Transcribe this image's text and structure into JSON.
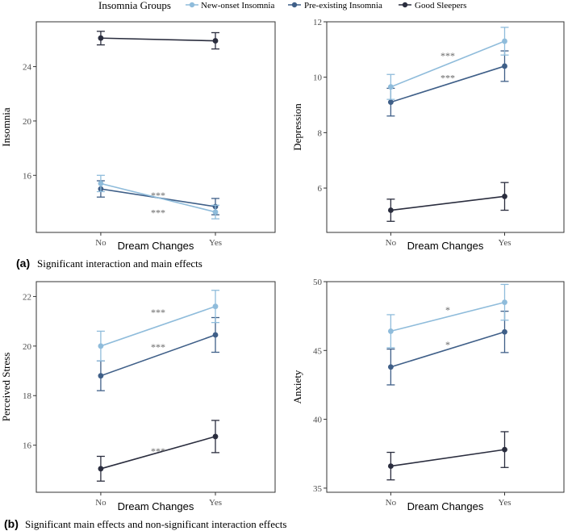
{
  "legend": {
    "title": "Insomnia Groups",
    "entries": [
      {
        "name": "New-onset Insomnia",
        "color": "#8fbcdb"
      },
      {
        "name": "Pre-existing Insomnia",
        "color": "#3f5f88"
      },
      {
        "name": "Good Sleepers",
        "color": "#2a2d3e"
      }
    ]
  },
  "captions": {
    "a_tag": "(a)",
    "a_text": "Significant interaction and main effects",
    "b_tag": "(b)",
    "b_text": "Significant main effects and non-significant interaction effects"
  },
  "chart_data": [
    {
      "type": "line",
      "ylabel": "Insomnia",
      "xlabel": "Dream Changes",
      "categories": [
        "No",
        "Yes"
      ],
      "ylim": [
        11.8,
        27.3
      ],
      "yticks": [
        16,
        20,
        24
      ],
      "series": [
        {
          "name": "New-onset Insomnia",
          "values": [
            15.4,
            13.3
          ],
          "err": [
            0.6,
            0.5
          ]
        },
        {
          "name": "Pre-existing Insomnia",
          "values": [
            15.0,
            13.7
          ],
          "err": [
            0.6,
            0.6
          ]
        },
        {
          "name": "Good Sleepers",
          "values": [
            26.1,
            25.9
          ],
          "err": [
            0.5,
            0.6
          ]
        }
      ],
      "annotations": [
        {
          "text": "***",
          "value": 14.6
        },
        {
          "text": "***",
          "value": 13.3
        }
      ]
    },
    {
      "type": "line",
      "ylabel": "Depression",
      "xlabel": "Dream Changes",
      "categories": [
        "No",
        "Yes"
      ],
      "ylim": [
        4.4,
        12.0
      ],
      "yticks": [
        6,
        8,
        10,
        12
      ],
      "series": [
        {
          "name": "New-onset Insomnia",
          "values": [
            9.65,
            11.3
          ],
          "err": [
            0.45,
            0.5
          ]
        },
        {
          "name": "Pre-existing Insomnia",
          "values": [
            9.1,
            10.4
          ],
          "err": [
            0.5,
            0.55
          ]
        },
        {
          "name": "Good Sleepers",
          "values": [
            5.2,
            5.7
          ],
          "err": [
            0.4,
            0.5
          ]
        }
      ],
      "annotations": [
        {
          "text": "***",
          "value": 10.8
        },
        {
          "text": "***",
          "value": 10.0
        }
      ]
    },
    {
      "type": "line",
      "ylabel": "Perceived Stress",
      "xlabel": "Dream Changes",
      "categories": [
        "No",
        "Yes"
      ],
      "ylim": [
        14.1,
        22.6
      ],
      "yticks": [
        16,
        18,
        20,
        22
      ],
      "series": [
        {
          "name": "New-onset Insomnia",
          "values": [
            20.0,
            21.6
          ],
          "err": [
            0.6,
            0.65
          ]
        },
        {
          "name": "Pre-existing Insomnia",
          "values": [
            18.8,
            20.45
          ],
          "err": [
            0.6,
            0.7
          ]
        },
        {
          "name": "Good Sleepers",
          "values": [
            15.05,
            16.35
          ],
          "err": [
            0.5,
            0.65
          ]
        }
      ],
      "annotations": [
        {
          "text": "***",
          "value": 21.4
        },
        {
          "text": "***",
          "value": 20.0
        },
        {
          "text": "***",
          "value": 15.8
        }
      ]
    },
    {
      "type": "line",
      "ylabel": "Anxiety",
      "xlabel": "Dream Changes",
      "categories": [
        "No",
        "Yes"
      ],
      "ylim": [
        34.7,
        50.0
      ],
      "yticks": [
        35,
        40,
        45,
        50
      ],
      "series": [
        {
          "name": "New-onset Insomnia",
          "values": [
            46.4,
            48.5
          ],
          "err": [
            1.2,
            1.3
          ]
        },
        {
          "name": "Pre-existing Insomnia",
          "values": [
            43.8,
            46.35
          ],
          "err": [
            1.3,
            1.5
          ]
        },
        {
          "name": "Good Sleepers",
          "values": [
            36.6,
            37.8
          ],
          "err": [
            1.0,
            1.3
          ]
        }
      ],
      "annotations": [
        {
          "text": "*",
          "value": 48.0
        },
        {
          "text": "*",
          "value": 45.5
        }
      ]
    }
  ]
}
